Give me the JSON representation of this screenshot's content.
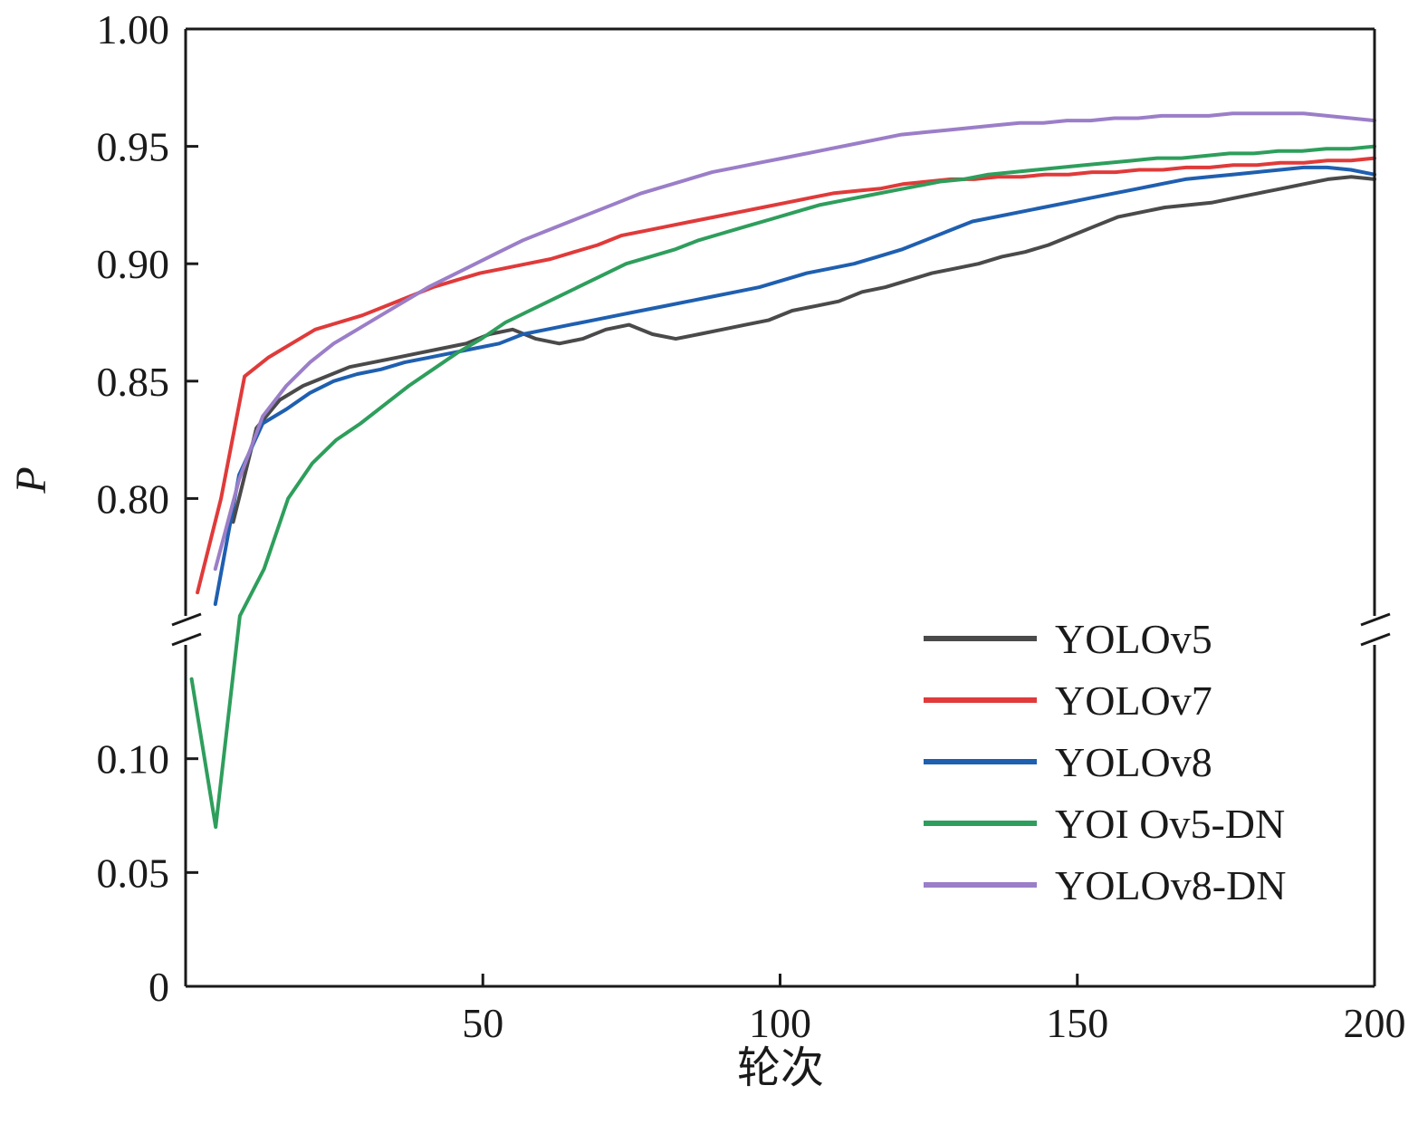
{
  "chart_data": {
    "type": "line",
    "title": "",
    "xlabel": "轮次",
    "ylabel": "P",
    "xlim": [
      0,
      200
    ],
    "x_ticks": [
      50,
      100,
      150,
      200
    ],
    "x_tick_labels": [
      "50",
      "100",
      "150",
      "200"
    ],
    "y_broken_axis": true,
    "y_lower_segment": [
      0,
      0.15
    ],
    "y_upper_segment": [
      0.75,
      1.0
    ],
    "y_ticks_lower": [
      0,
      0.05,
      0.1
    ],
    "y_tick_labels_lower": [
      "0",
      "0.05",
      "0.10"
    ],
    "y_ticks_upper": [
      0.8,
      0.85,
      0.9,
      0.95,
      1.0
    ],
    "y_tick_labels_upper": [
      "0.80",
      "0.85",
      "0.90",
      "0.95",
      "1.00"
    ],
    "grid": false,
    "legend_position": "lower-right",
    "series": [
      {
        "name": "YOLOv5",
        "color": "#4a4a4a",
        "start_epoch": 8,
        "values": [
          0.79,
          0.83,
          0.842,
          0.848,
          0.852,
          0.856,
          0.858,
          0.86,
          0.862,
          0.864,
          0.866,
          0.87,
          0.872,
          0.868,
          0.866,
          0.868,
          0.872,
          0.874,
          0.87,
          0.868,
          0.87,
          0.872,
          0.874,
          0.876,
          0.88,
          0.882,
          0.884,
          0.888,
          0.89,
          0.893,
          0.896,
          0.898,
          0.9,
          0.903,
          0.905,
          0.908,
          0.912,
          0.916,
          0.92,
          0.922,
          0.924,
          0.925,
          0.926,
          0.928,
          0.93,
          0.932,
          0.934,
          0.936,
          0.937,
          0.936
        ]
      },
      {
        "name": "YOLOv7",
        "color": "#e03a3a",
        "start_epoch": 2,
        "values": [
          0.76,
          0.8,
          0.852,
          0.86,
          0.866,
          0.872,
          0.875,
          0.878,
          0.882,
          0.886,
          0.89,
          0.893,
          0.896,
          0.898,
          0.9,
          0.902,
          0.905,
          0.908,
          0.912,
          0.914,
          0.916,
          0.918,
          0.92,
          0.922,
          0.924,
          0.926,
          0.928,
          0.93,
          0.931,
          0.932,
          0.934,
          0.935,
          0.936,
          0.936,
          0.937,
          0.937,
          0.938,
          0.938,
          0.939,
          0.939,
          0.94,
          0.94,
          0.941,
          0.941,
          0.942,
          0.942,
          0.943,
          0.943,
          0.944,
          0.944,
          0.945
        ]
      },
      {
        "name": "YOLOv8",
        "color": "#1f5fb0",
        "start_epoch": 5,
        "values": [
          0.755,
          0.81,
          0.832,
          0.838,
          0.845,
          0.85,
          0.853,
          0.855,
          0.858,
          0.86,
          0.862,
          0.864,
          0.866,
          0.87,
          0.872,
          0.874,
          0.876,
          0.878,
          0.88,
          0.882,
          0.884,
          0.886,
          0.888,
          0.89,
          0.893,
          0.896,
          0.898,
          0.9,
          0.903,
          0.906,
          0.91,
          0.914,
          0.918,
          0.92,
          0.922,
          0.924,
          0.926,
          0.928,
          0.93,
          0.932,
          0.934,
          0.936,
          0.937,
          0.938,
          0.939,
          0.94,
          0.941,
          0.941,
          0.94,
          0.938
        ]
      },
      {
        "name": "YOI Ov5-DN",
        "color": "#2e9e5c",
        "start_epoch": 1,
        "values": [
          0.135,
          0.07,
          0.75,
          0.77,
          0.8,
          0.815,
          0.825,
          0.832,
          0.84,
          0.848,
          0.855,
          0.862,
          0.868,
          0.875,
          0.88,
          0.885,
          0.89,
          0.895,
          0.9,
          0.903,
          0.906,
          0.91,
          0.913,
          0.916,
          0.919,
          0.922,
          0.925,
          0.927,
          0.929,
          0.931,
          0.933,
          0.935,
          0.936,
          0.938,
          0.939,
          0.94,
          0.941,
          0.942,
          0.943,
          0.944,
          0.945,
          0.945,
          0.946,
          0.947,
          0.947,
          0.948,
          0.948,
          0.949,
          0.949,
          0.95
        ]
      },
      {
        "name": "YOLOv8-DN",
        "color": "#9b7ec8",
        "start_epoch": 5,
        "values": [
          0.77,
          0.808,
          0.835,
          0.848,
          0.858,
          0.866,
          0.872,
          0.878,
          0.884,
          0.89,
          0.895,
          0.9,
          0.905,
          0.91,
          0.914,
          0.918,
          0.922,
          0.926,
          0.93,
          0.933,
          0.936,
          0.939,
          0.941,
          0.943,
          0.945,
          0.947,
          0.949,
          0.951,
          0.953,
          0.955,
          0.956,
          0.957,
          0.958,
          0.959,
          0.96,
          0.96,
          0.961,
          0.961,
          0.962,
          0.962,
          0.963,
          0.963,
          0.963,
          0.964,
          0.964,
          0.964,
          0.964,
          0.963,
          0.962,
          0.961
        ]
      }
    ]
  }
}
